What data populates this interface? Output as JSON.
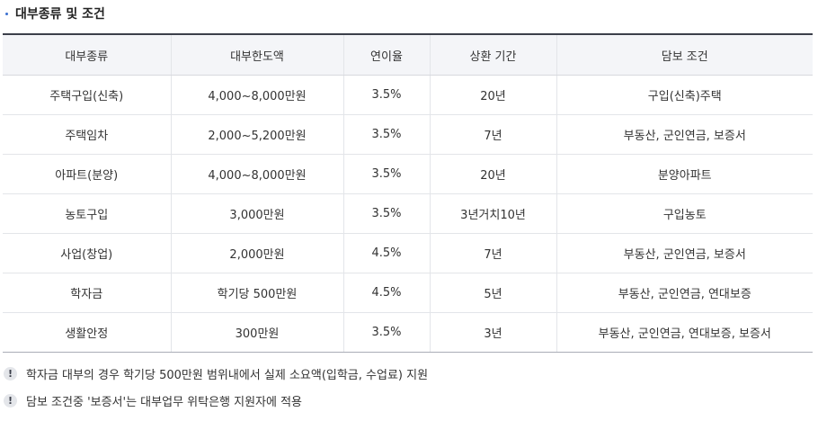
{
  "section": {
    "title": "대부종류 및 조건"
  },
  "table": {
    "headers": [
      "대부종류",
      "대부한도액",
      "연이율",
      "상환 기간",
      "담보 조건"
    ],
    "rows": [
      [
        "주택구입(신축)",
        "4,000~8,000만원",
        "3.5%",
        "20년",
        "구입(신축)주택"
      ],
      [
        "주택임차",
        "2,000~5,200만원",
        "3.5%",
        "7년",
        "부동산, 군인연금, 보증서"
      ],
      [
        "아파트(분양)",
        "4,000~8,000만원",
        "3.5%",
        "20년",
        "분양아파트"
      ],
      [
        "농토구입",
        "3,000만원",
        "3.5%",
        "3년거치10년",
        "구입농토"
      ],
      [
        "사업(창업)",
        "2,000만원",
        "4.5%",
        "7년",
        "부동산, 군인연금, 보증서"
      ],
      [
        "학자금",
        "학기당 500만원",
        "4.5%",
        "5년",
        "부동산, 군인연금, 연대보증"
      ],
      [
        "생활안정",
        "300만원",
        "3.5%",
        "3년",
        "부동산, 군인연금, 연대보증, 보증서"
      ]
    ]
  },
  "notes": [
    {
      "icon": "exclamation-icon",
      "glyph": "!",
      "text": "학자금 대부의 경우 학기당 500만원 범위내에서 실제 소요액(입학금, 수업료) 지원"
    },
    {
      "icon": "exclamation-icon",
      "glyph": "!",
      "text": "담보 조건중 '보증서'는 대부업무 위탁은행 지원자에 적용"
    }
  ]
}
